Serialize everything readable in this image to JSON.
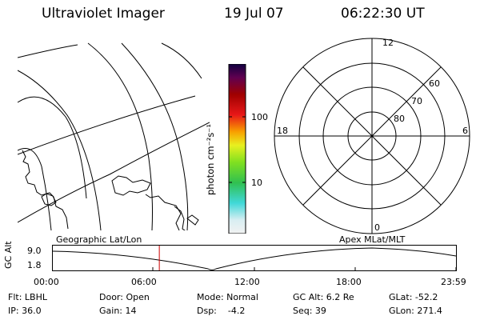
{
  "header": {
    "title": "Ultraviolet Imager",
    "date": "19 Jul 07",
    "time": "06:22:30 UT"
  },
  "colorbar": {
    "label": "photon cm⁻²s⁻¹",
    "ticks": [
      "100",
      "10"
    ]
  },
  "polar": {
    "mlt_labels": {
      "top": "12",
      "left": "18",
      "right": "6",
      "bottom": "0"
    },
    "lat_labels": [
      "60",
      "70",
      "80"
    ]
  },
  "orbit": {
    "left_label": "Geographic Lat/Lon",
    "right_label": "Apex MLat/MLT",
    "ylabel": "GC Alt",
    "yticks": [
      "9.0",
      "1.8"
    ],
    "xticks": [
      "00:00",
      "06:00",
      "12:00",
      "18:00",
      "23:59"
    ],
    "marker_time_hours": 6.375
  },
  "status": {
    "filter": "Flt: LBHL",
    "ip": "IP: 36.0",
    "door": "Door: Open",
    "gain": "Gain: 14",
    "mode": "Mode: Normal",
    "dsp": "Dsp:    -4.2",
    "gc_alt": "GC Alt: 6.2 Re",
    "seq": "Seq: 39",
    "glat": "GLat: -52.2",
    "glon": "GLon: 271.4"
  },
  "colors": {
    "marker": "#cc0000",
    "background": "#ffffff",
    "lines": "#000000"
  }
}
